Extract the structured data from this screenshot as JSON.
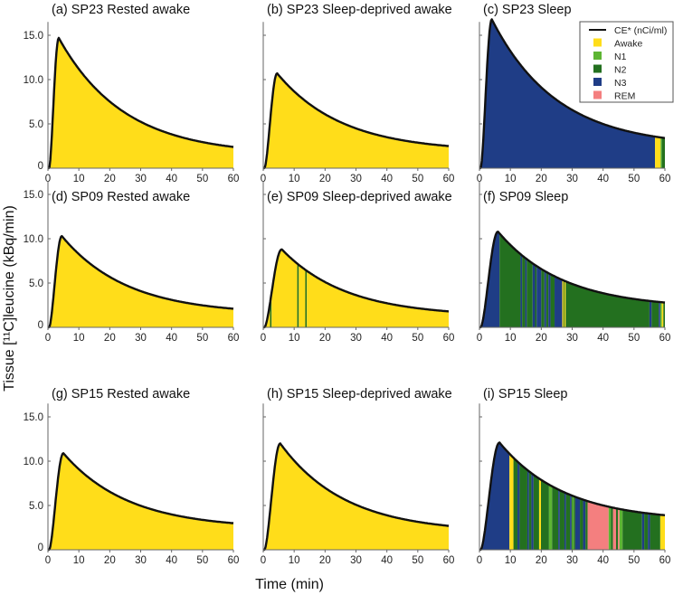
{
  "chart_data": {
    "type": "area",
    "xlabel": "Time (min)",
    "ylabel": "Tissue [¹¹C]leucine (kBq/min)",
    "xlim": [
      0,
      60
    ],
    "ylim": [
      0,
      16.5
    ],
    "xticks": [
      "0",
      "10",
      "20",
      "30",
      "40",
      "50",
      "60"
    ],
    "yticks": [
      "0",
      "5.0",
      "10.0",
      "15.0"
    ],
    "colors": {
      "Awake": "#ffdd1a",
      "N1": "#5db533",
      "N2": "#23701f",
      "N3": "#1f3d86",
      "REM": "#f47f7f",
      "curve": "#111111"
    },
    "legend": {
      "position": "top-right",
      "entries": [
        "CE* (nCi/ml)",
        "Awake",
        "N1",
        "N2",
        "N3",
        "REM"
      ]
    },
    "panels": [
      {
        "title": "(a) SP23 Rested awake",
        "peak": 14.7,
        "peak_time": 3.5,
        "end": 2.4,
        "stages": [
          [
            0,
            60,
            "Awake"
          ]
        ]
      },
      {
        "title": "(b) SP23 Sleep-deprived awake",
        "peak": 10.7,
        "peak_time": 4.5,
        "end": 2.5,
        "stages": [
          [
            0,
            60,
            "Awake"
          ]
        ]
      },
      {
        "title": "(c) SP23 Sleep",
        "peak": 16.8,
        "peak_time": 4,
        "end": 3.4,
        "stages": [
          [
            0,
            56.8,
            "N3"
          ],
          [
            56.8,
            58.6,
            "Awake"
          ],
          [
            58.6,
            59,
            "N1"
          ],
          [
            59,
            60,
            "N2"
          ]
        ]
      },
      {
        "title": "(d) SP09 Rested awake",
        "peak": 10.3,
        "peak_time": 4.5,
        "end": 2.1,
        "stages": [
          [
            0,
            60,
            "Awake"
          ]
        ]
      },
      {
        "title": "(e) SP09 Sleep-deprived awake",
        "peak": 8.8,
        "peak_time": 6,
        "end": 1.8,
        "stages": [
          [
            0,
            2.2,
            "Awake"
          ],
          [
            2.2,
            2.7,
            "N2"
          ],
          [
            2.7,
            11,
            "Awake"
          ],
          [
            11,
            11.5,
            "N2"
          ],
          [
            11.5,
            13.6,
            "Awake"
          ],
          [
            13.6,
            14.1,
            "N2"
          ],
          [
            14.1,
            60,
            "Awake"
          ]
        ]
      },
      {
        "title": "(f) SP09 Sleep",
        "peak": 10.8,
        "peak_time": 6,
        "end": 2.8,
        "stages": [
          [
            0,
            6.5,
            "N3"
          ],
          [
            6.5,
            13.3,
            "N2"
          ],
          [
            13.3,
            13.8,
            "N3"
          ],
          [
            13.8,
            14.8,
            "N2"
          ],
          [
            14.8,
            15.3,
            "N3"
          ],
          [
            15.3,
            17.2,
            "N2"
          ],
          [
            17.2,
            18,
            "N3"
          ],
          [
            18,
            18.5,
            "N2"
          ],
          [
            18.5,
            20,
            "N3"
          ],
          [
            20,
            21,
            "N2"
          ],
          [
            21,
            21.6,
            "N3"
          ],
          [
            21.6,
            22.3,
            "N2"
          ],
          [
            22.3,
            23,
            "N3"
          ],
          [
            23,
            24.3,
            "N2"
          ],
          [
            24.3,
            26.8,
            "N3"
          ],
          [
            26.8,
            27.2,
            "Awake"
          ],
          [
            27.2,
            27.5,
            "N2"
          ],
          [
            27.5,
            27.9,
            "Awake"
          ],
          [
            27.9,
            55,
            "N2"
          ],
          [
            55,
            55.7,
            "N3"
          ],
          [
            55.7,
            58,
            "N2"
          ],
          [
            58,
            58.5,
            "N3"
          ],
          [
            58.5,
            59,
            "N1"
          ],
          [
            59,
            59.5,
            "Awake"
          ],
          [
            59.5,
            60,
            "N2"
          ]
        ]
      },
      {
        "title": "(g) SP15 Rested awake",
        "peak": 10.9,
        "peak_time": 5,
        "end": 3.0,
        "stages": [
          [
            0,
            60,
            "Awake"
          ]
        ]
      },
      {
        "title": "(h) SP15 Sleep-deprived awake",
        "peak": 12.0,
        "peak_time": 5.5,
        "end": 2.7,
        "stages": [
          [
            0,
            60,
            "Awake"
          ]
        ]
      },
      {
        "title": "(i) SP15 Sleep",
        "peak": 12.1,
        "peak_time": 6.5,
        "end": 3.9,
        "stages": [
          [
            0,
            9.7,
            "N3"
          ],
          [
            9.7,
            11,
            "Awake"
          ],
          [
            11,
            12.3,
            "N2"
          ],
          [
            12.3,
            13,
            "N3"
          ],
          [
            13,
            15.5,
            "N2"
          ],
          [
            15.5,
            16,
            "N3"
          ],
          [
            16,
            16.8,
            "N2"
          ],
          [
            16.8,
            17.5,
            "N3"
          ],
          [
            17.5,
            19.3,
            "N2"
          ],
          [
            19.3,
            19.9,
            "Awake"
          ],
          [
            19.9,
            22.5,
            "N2"
          ],
          [
            22.5,
            23.5,
            "N1"
          ],
          [
            23.5,
            25.5,
            "N2"
          ],
          [
            25.5,
            26,
            "N3"
          ],
          [
            26,
            27.5,
            "N2"
          ],
          [
            27.5,
            28,
            "N3"
          ],
          [
            28,
            29.3,
            "N2"
          ],
          [
            29.3,
            29.8,
            "N3"
          ],
          [
            29.8,
            30,
            "N2"
          ],
          [
            30,
            30.5,
            "N1"
          ],
          [
            30.5,
            31,
            "N2"
          ],
          [
            31,
            32.5,
            "N3"
          ],
          [
            32.5,
            33.5,
            "N2"
          ],
          [
            33.5,
            34.3,
            "N3"
          ],
          [
            34.3,
            35,
            "N2"
          ],
          [
            35,
            41.8,
            "REM"
          ],
          [
            41.8,
            42.5,
            "N1"
          ],
          [
            42.5,
            43.2,
            "N2"
          ],
          [
            43.2,
            44.2,
            "REM"
          ],
          [
            44.2,
            44.8,
            "N2"
          ],
          [
            44.8,
            45.3,
            "REM"
          ],
          [
            45.3,
            46.3,
            "N1"
          ],
          [
            46.3,
            52.6,
            "N2"
          ],
          [
            52.6,
            53.3,
            "N3"
          ],
          [
            53.3,
            54.5,
            "N2"
          ],
          [
            54.5,
            55.2,
            "N3"
          ],
          [
            55.2,
            58.5,
            "N2"
          ],
          [
            58.5,
            60,
            "Awake"
          ]
        ]
      }
    ]
  }
}
